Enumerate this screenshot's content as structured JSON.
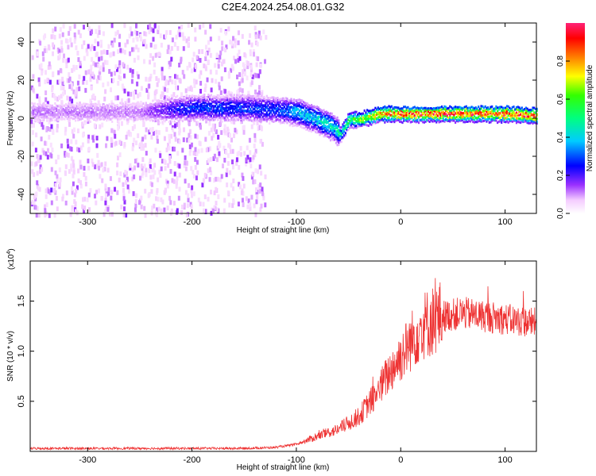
{
  "page_title": "C2E4.2024.254.08.01.G32",
  "chart_data": [
    {
      "type": "heatmap",
      "xlabel": "Height of straight line (km)",
      "ylabel": "Frequency (Hz)",
      "xlim": [
        -355,
        130
      ],
      "ylim": [
        -50,
        50
      ],
      "xticks": [
        -300,
        -200,
        -100,
        0,
        100
      ],
      "yticks": [
        -40,
        -20,
        0,
        20,
        40
      ],
      "colorbar": {
        "label": "Normalized spectral amplitude",
        "range": [
          0.0,
          1.0
        ],
        "ticks": [
          "0.0",
          "0.2",
          "0.4",
          "0.6",
          "0.8"
        ],
        "colormap": [
          "#ffffff",
          "#ff00ff",
          "#0000ff",
          "#00ffff",
          "#00ff00",
          "#ffff00",
          "#ff0000",
          "#ff0040"
        ]
      },
      "ridge": {
        "x": [
          -350,
          -300,
          -250,
          -200,
          -150,
          -120,
          -100,
          -80,
          -65,
          -58,
          -50,
          -40,
          -20,
          0,
          20,
          50,
          80,
          100,
          130
        ],
        "freq": [
          4,
          4,
          4,
          6,
          6,
          5,
          4,
          0,
          -4,
          -8,
          0,
          0,
          3,
          3,
          3,
          3,
          3,
          3,
          2
        ],
        "amplitude": [
          0.12,
          0.12,
          0.12,
          0.3,
          0.3,
          0.3,
          0.4,
          0.45,
          0.45,
          0.5,
          0.6,
          0.7,
          0.85,
          0.95,
          0.95,
          0.95,
          0.95,
          0.95,
          0.9
        ]
      },
      "noise_extent_x": [
        -355,
        -130
      ]
    },
    {
      "type": "line",
      "xlabel": "Height of straight line (km)",
      "ylabel": "SNR (10 * v/v)",
      "multiplier": "(x10",
      "multiplier_exp": "4",
      "multiplier_close": ")",
      "xlim": [
        -355,
        130
      ],
      "ylim": [
        0,
        1.9
      ],
      "xticks": [
        -300,
        -200,
        -100,
        0,
        100
      ],
      "yticks": [
        0.5,
        1.0,
        1.5
      ],
      "ytick_labels": [
        "0.5",
        "1.0",
        "1.5"
      ],
      "series": [
        {
          "color": "#ee3333",
          "x": [
            -350,
            -300,
            -250,
            -200,
            -150,
            -120,
            -100,
            -80,
            -60,
            -40,
            -25,
            -10,
            0,
            10,
            20,
            40,
            60,
            80,
            100,
            130
          ],
          "y": [
            0.03,
            0.03,
            0.03,
            0.03,
            0.03,
            0.04,
            0.07,
            0.15,
            0.22,
            0.35,
            0.55,
            0.8,
            0.95,
            1.1,
            1.25,
            1.35,
            1.38,
            1.35,
            1.32,
            1.28
          ]
        }
      ]
    }
  ]
}
